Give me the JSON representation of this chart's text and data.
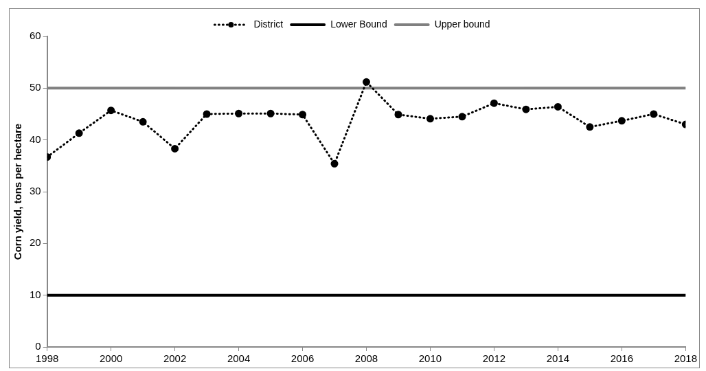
{
  "chart_data": {
    "type": "line",
    "ylabel": "Corn yield, tons per hectare",
    "x": [
      1998,
      1999,
      2000,
      2001,
      2002,
      2003,
      2004,
      2005,
      2006,
      2007,
      2008,
      2009,
      2010,
      2011,
      2012,
      2013,
      2014,
      2015,
      2016,
      2017,
      2018
    ],
    "series": [
      {
        "name": "District",
        "color": "#000000",
        "marker": "circle",
        "line_style": "dotted",
        "values": [
          36.7,
          41.3,
          45.7,
          43.5,
          38.3,
          45,
          45.1,
          45.1,
          44.9,
          35.4,
          51.2,
          44.9,
          44.1,
          44.5,
          47.1,
          45.9,
          46.4,
          42.5,
          43.7,
          45,
          43
        ]
      },
      {
        "name": "Lower Bound",
        "color": "#000000",
        "marker": "none",
        "line_style": "solid",
        "values": [
          10,
          10,
          10,
          10,
          10,
          10,
          10,
          10,
          10,
          10,
          10,
          10,
          10,
          10,
          10,
          10,
          10,
          10,
          10,
          10,
          10
        ]
      },
      {
        "name": "Upper bound",
        "color": "#808080",
        "marker": "none",
        "line_style": "solid",
        "values": [
          50,
          50,
          50,
          50,
          50,
          50,
          50,
          50,
          50,
          50,
          50,
          50,
          50,
          50,
          50,
          50,
          50,
          50,
          50,
          50,
          50
        ]
      }
    ],
    "xlim": [
      1998,
      2018
    ],
    "xticks": [
      1998,
      2000,
      2002,
      2004,
      2006,
      2008,
      2010,
      2012,
      2014,
      2016,
      2018
    ],
    "ylim": [
      0,
      60
    ],
    "yticks": [
      0,
      10,
      20,
      30,
      40,
      50,
      60
    ],
    "grid": false,
    "legend": "top"
  }
}
